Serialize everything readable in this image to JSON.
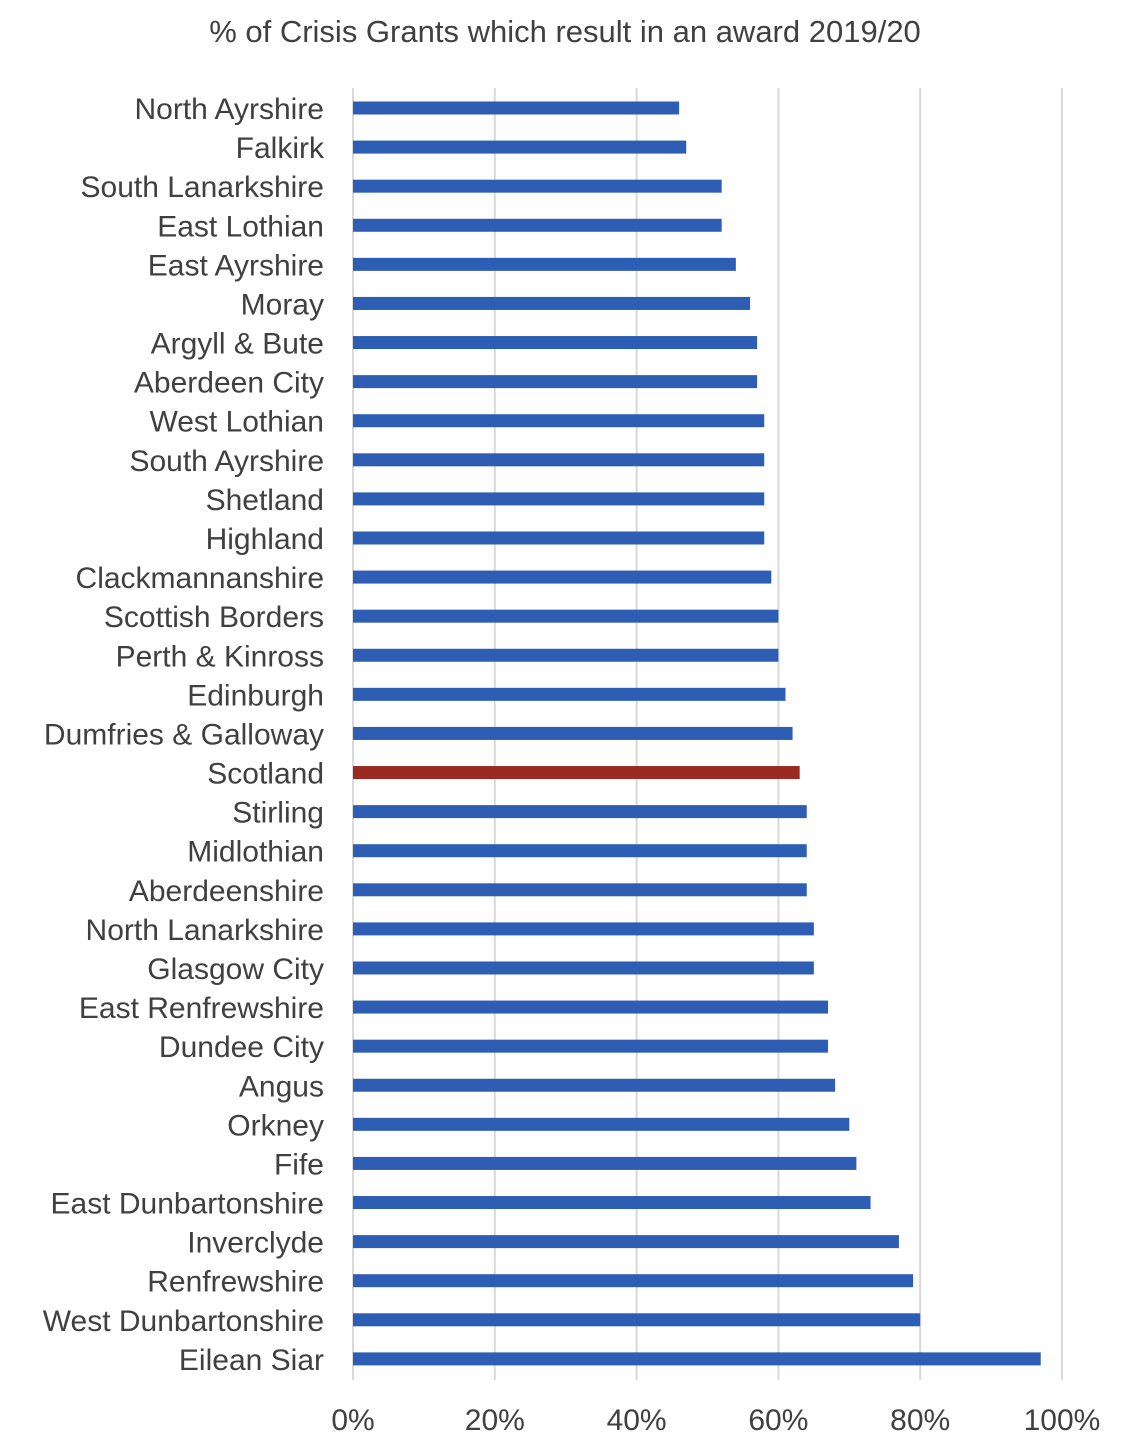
{
  "chart_data": {
    "type": "bar",
    "orientation": "horizontal",
    "title": "% of Crisis Grants which result in an award 2019/20",
    "xlabel": "",
    "ylabel": "",
    "xlim": [
      0,
      100
    ],
    "x_ticks": [
      "0%",
      "20%",
      "40%",
      "60%",
      "80%",
      "100%"
    ],
    "grid": "vertical gridlines",
    "legend": "none",
    "bar_color": "#2E5EB3",
    "highlight_color": "#9B2A22",
    "highlight_category": "Scotland",
    "categories": [
      "North Ayrshire",
      "Falkirk",
      "South Lanarkshire",
      "East Lothian",
      "East Ayrshire",
      "Moray",
      "Argyll & Bute",
      "Aberdeen City",
      "West Lothian",
      "South Ayrshire",
      "Shetland",
      "Highland",
      "Clackmannanshire",
      "Scottish Borders",
      "Perth & Kinross",
      "Edinburgh",
      "Dumfries & Galloway",
      "Scotland",
      "Stirling",
      "Midlothian",
      "Aberdeenshire",
      "North Lanarkshire",
      "Glasgow City",
      "East Renfrewshire",
      "Dundee City",
      "Angus",
      "Orkney",
      "Fife",
      "East Dunbartonshire",
      "Inverclyde",
      "Renfrewshire",
      "West Dunbartonshire",
      "Eilean Siar"
    ],
    "values": [
      46,
      47,
      52,
      52,
      54,
      56,
      57,
      57,
      58,
      58,
      58,
      58,
      59,
      60,
      60,
      61,
      62,
      63,
      64,
      64,
      64,
      65,
      65,
      67,
      67,
      68,
      70,
      71,
      73,
      77,
      79,
      80,
      97
    ]
  }
}
